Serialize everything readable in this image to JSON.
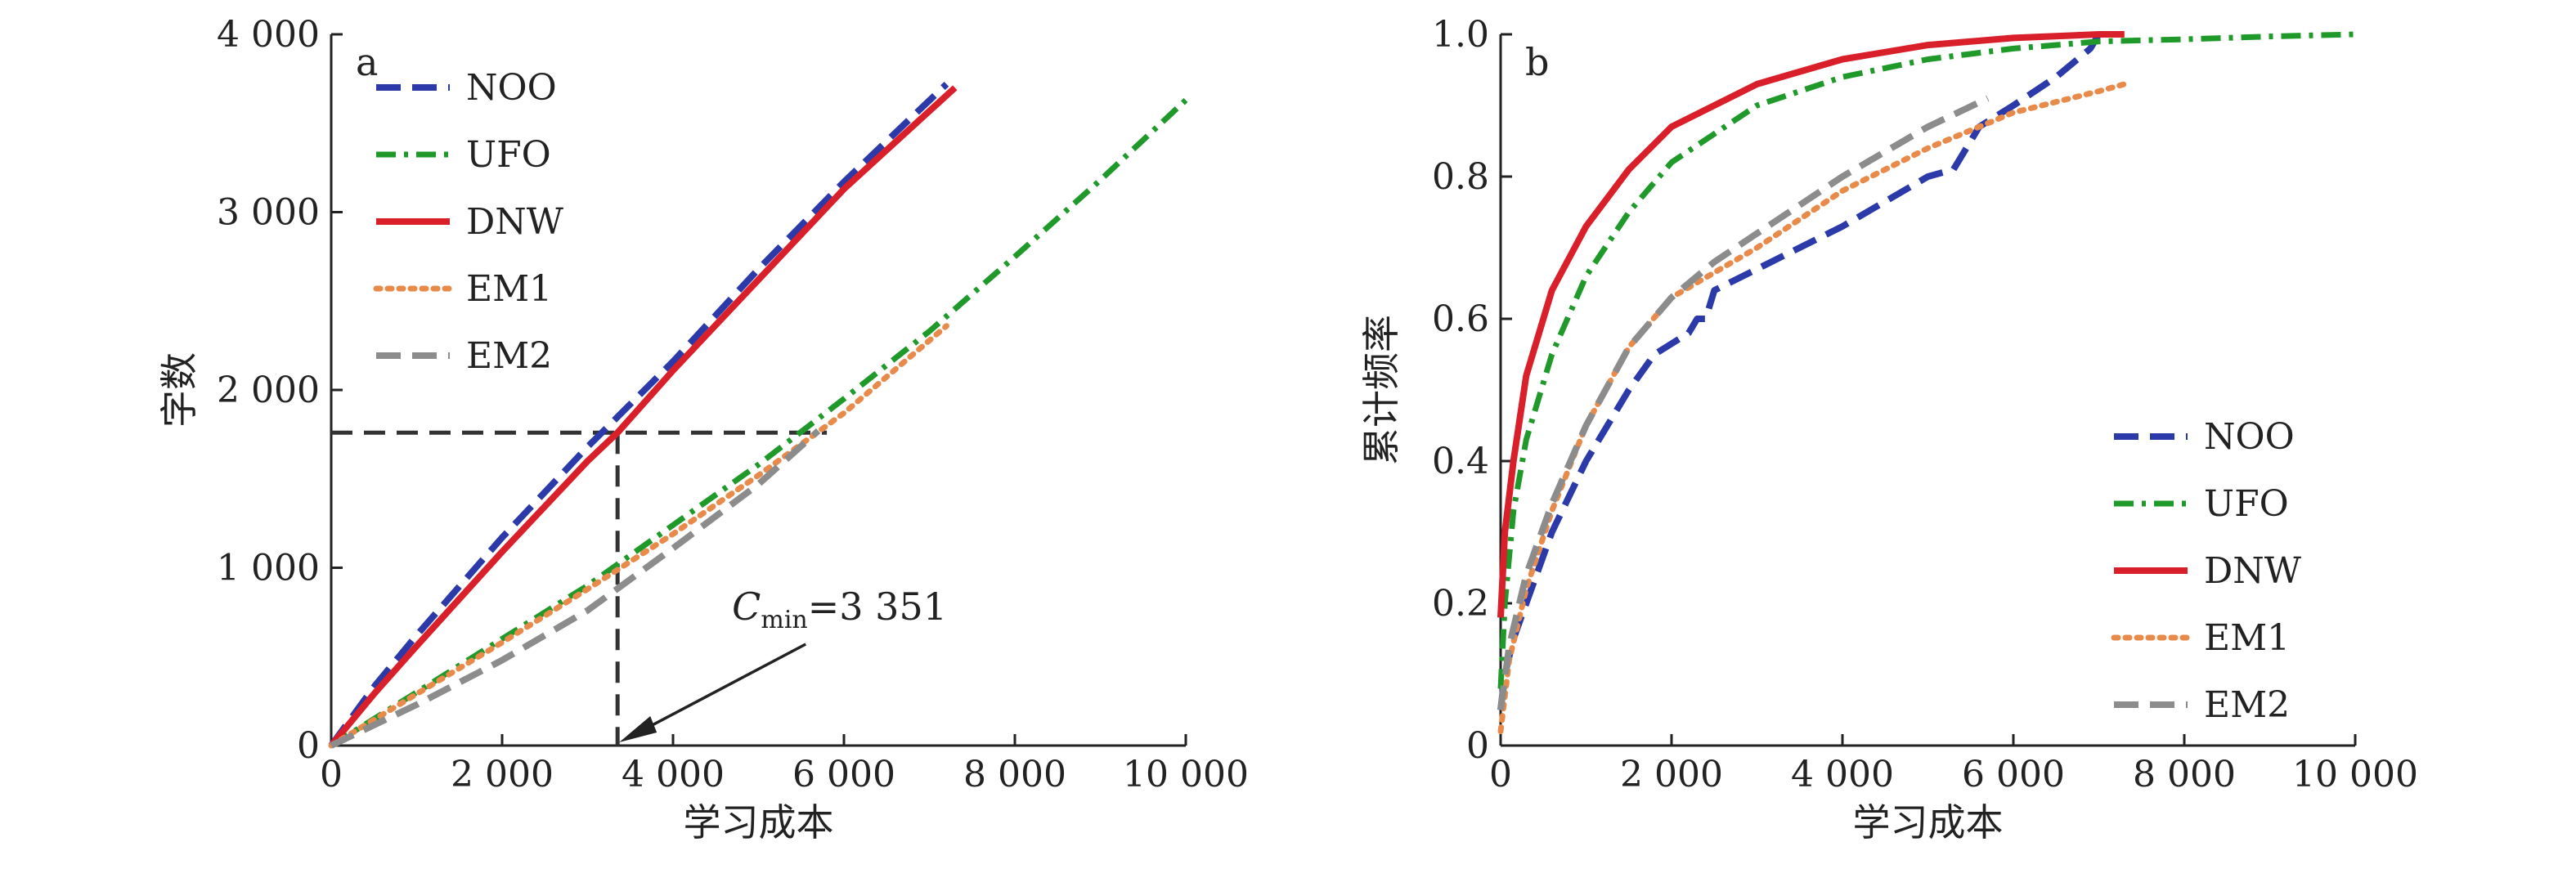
{
  "chart_data": [
    {
      "panel": "a",
      "type": "line",
      "xlabel": "学习成本",
      "ylabel": "字数",
      "xlim": [
        0,
        10000
      ],
      "ylim": [
        0,
        4000
      ],
      "xticks": [
        0,
        2000,
        4000,
        6000,
        8000,
        10000
      ],
      "yticks": [
        0,
        1000,
        2000,
        3000,
        4000
      ],
      "xtick_labels": [
        "0",
        "2 000",
        "4 000",
        "6 000",
        "8 000",
        "10 000"
      ],
      "ytick_labels": [
        "0",
        "1 000",
        "2 000",
        "3 000",
        "4 000"
      ],
      "legend_position": "top-left",
      "series": [
        {
          "name": "NOO",
          "color": "#2b3aa8",
          "style": "dashed",
          "x": [
            0,
            500,
            1000,
            2000,
            3000,
            4000,
            5000,
            6000,
            7200
          ],
          "y": [
            0,
            330,
            620,
            1170,
            1680,
            2160,
            2680,
            3170,
            3720
          ]
        },
        {
          "name": "UFO",
          "color": "#1f9a2a",
          "style": "dashdot",
          "x": [
            0,
            1000,
            2000,
            3000,
            4000,
            5000,
            6000,
            7000,
            8000,
            9000,
            10000
          ],
          "y": [
            0,
            300,
            600,
            900,
            1240,
            1580,
            1950,
            2330,
            2750,
            3180,
            3630
          ]
        },
        {
          "name": "DNW",
          "color": "#d9202a",
          "style": "solid",
          "x": [
            0,
            500,
            1000,
            2000,
            3000,
            3351,
            4000,
            5000,
            6000,
            7300
          ],
          "y": [
            0,
            290,
            560,
            1090,
            1600,
            1760,
            2110,
            2620,
            3130,
            3700
          ]
        },
        {
          "name": "EM1",
          "color": "#e88a4a",
          "style": "dotted",
          "x": [
            0,
            1000,
            2000,
            3000,
            4000,
            5000,
            6000,
            7200
          ],
          "y": [
            0,
            290,
            580,
            880,
            1190,
            1520,
            1870,
            2360
          ]
        },
        {
          "name": "EM2",
          "color": "#8c8c8c",
          "style": "dashed",
          "x": [
            0,
            1000,
            2000,
            3000,
            4000,
            5000,
            5700
          ],
          "y": [
            0,
            230,
            480,
            760,
            1110,
            1470,
            1770
          ]
        }
      ],
      "reference_lines": {
        "x": 3351,
        "y": 1760,
        "x_end": 5800,
        "color": "#333333"
      },
      "annotation": {
        "text_main": "C",
        "text_sub": "min",
        "text_value": "=3 351",
        "x": 3351,
        "y": 0
      }
    },
    {
      "panel": "b",
      "type": "line",
      "xlabel": "学习成本",
      "ylabel": "累计频率",
      "xlim": [
        0,
        10000
      ],
      "ylim": [
        0,
        1.0
      ],
      "xticks": [
        0,
        2000,
        4000,
        6000,
        8000,
        10000
      ],
      "yticks": [
        0,
        0.2,
        0.4,
        0.6,
        0.8,
        1.0
      ],
      "xtick_labels": [
        "0",
        "2 000",
        "4 000",
        "6 000",
        "8 000",
        "10 000"
      ],
      "ytick_labels": [
        "0",
        "0.2",
        "0.4",
        "0.6",
        "0.8",
        "1.0"
      ],
      "legend_position": "bottom-right",
      "series": [
        {
          "name": "NOO",
          "color": "#2b3aa8",
          "style": "dashed",
          "x": [
            0,
            50,
            150,
            300,
            600,
            1000,
            1500,
            1800,
            2200,
            2300,
            2400,
            2500,
            3000,
            4000,
            5000,
            5300,
            5600,
            6000,
            6500,
            6900,
            7000
          ],
          "y": [
            0.05,
            0.1,
            0.15,
            0.2,
            0.3,
            0.4,
            0.5,
            0.55,
            0.58,
            0.6,
            0.6,
            0.64,
            0.67,
            0.73,
            0.8,
            0.81,
            0.87,
            0.9,
            0.94,
            0.98,
            1.0
          ]
        },
        {
          "name": "UFO",
          "color": "#1f9a2a",
          "style": "dashdot",
          "x": [
            0,
            50,
            150,
            300,
            600,
            1000,
            1500,
            2000,
            3000,
            4000,
            5000,
            6000,
            7000,
            8000,
            9000,
            10000
          ],
          "y": [
            0.08,
            0.2,
            0.33,
            0.43,
            0.55,
            0.66,
            0.75,
            0.82,
            0.9,
            0.94,
            0.965,
            0.98,
            0.99,
            0.993,
            0.997,
            1.0
          ]
        },
        {
          "name": "DNW",
          "color": "#d9202a",
          "style": "solid",
          "x": [
            0,
            50,
            150,
            300,
            600,
            1000,
            1500,
            2000,
            3000,
            4000,
            5000,
            6000,
            7000,
            7300
          ],
          "y": [
            0.18,
            0.3,
            0.4,
            0.52,
            0.64,
            0.73,
            0.81,
            0.87,
            0.93,
            0.965,
            0.985,
            0.995,
            1.0,
            1.0
          ]
        },
        {
          "name": "EM1",
          "color": "#e88a4a",
          "style": "dotted",
          "x": [
            0,
            100,
            300,
            600,
            1000,
            1500,
            2000,
            3000,
            4000,
            5000,
            6000,
            7000,
            7300
          ],
          "y": [
            0.02,
            0.12,
            0.22,
            0.33,
            0.45,
            0.56,
            0.63,
            0.7,
            0.78,
            0.84,
            0.89,
            0.92,
            0.93
          ]
        },
        {
          "name": "EM2",
          "color": "#8c8c8c",
          "style": "dashed",
          "x": [
            0,
            100,
            300,
            600,
            1000,
            1500,
            2000,
            2500,
            3000,
            4000,
            5000,
            5700
          ],
          "y": [
            0.05,
            0.14,
            0.24,
            0.34,
            0.45,
            0.56,
            0.63,
            0.68,
            0.72,
            0.8,
            0.87,
            0.91
          ]
        }
      ]
    }
  ]
}
